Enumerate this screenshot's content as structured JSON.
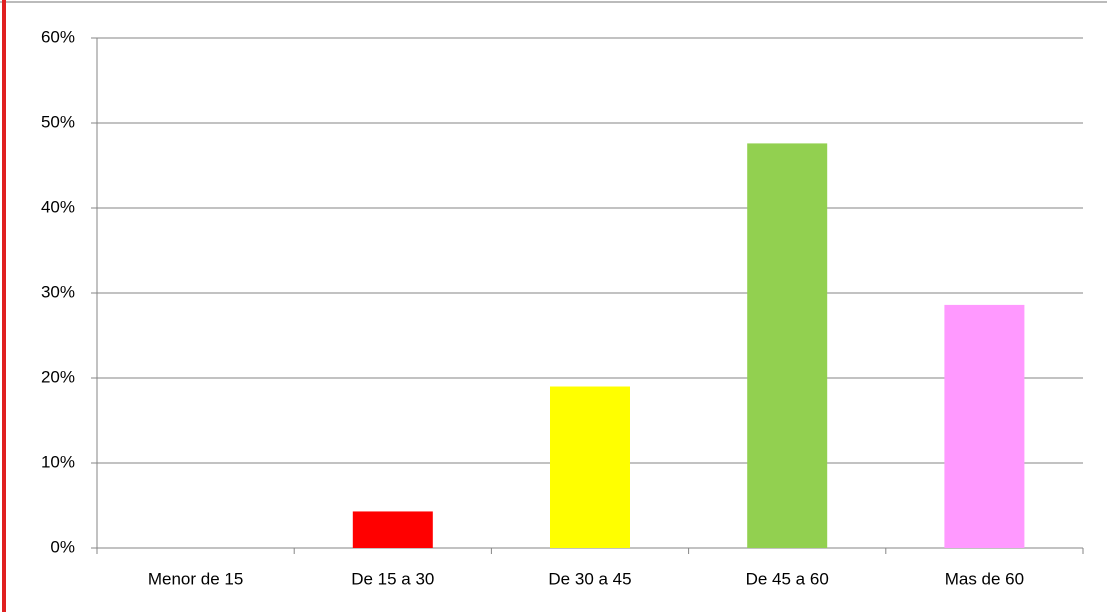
{
  "chart_data": {
    "type": "bar",
    "categories": [
      "Menor de 15",
      "De 15 a 30",
      "De 30 a 45",
      "De 45 a 60",
      "Mas de 60"
    ],
    "values": [
      0,
      4.3,
      19,
      47.6,
      28.6
    ],
    "colors": [
      "#4f81bd",
      "#ff0000",
      "#ffff00",
      "#92d050",
      "#ff99ff"
    ],
    "ylim": [
      0,
      60
    ],
    "yticks": [
      {
        "value": 0,
        "label": "0%"
      },
      {
        "value": 10,
        "label": "10%"
      },
      {
        "value": 20,
        "label": "20%"
      },
      {
        "value": 30,
        "label": "30%"
      },
      {
        "value": 40,
        "label": "40%"
      },
      {
        "value": 50,
        "label": "50%"
      },
      {
        "value": 60,
        "label": "60%"
      }
    ],
    "grid": true
  }
}
